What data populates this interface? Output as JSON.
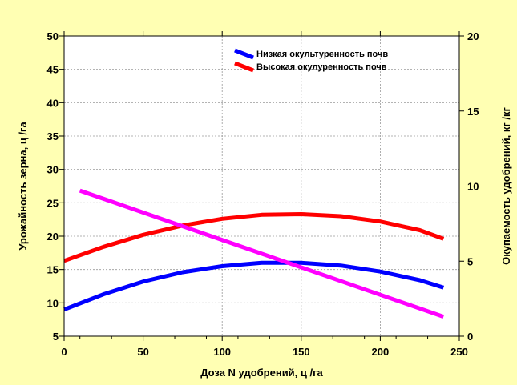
{
  "chart_data": {
    "type": "line",
    "xlabel": "Доза N удобрений, ц /га",
    "ylabel_left": "Урожайность зерна, ц /га",
    "ylabel_right": "Окупаемость удобрений, кг /кг",
    "xlim": [
      0,
      250
    ],
    "ylim_left": [
      5,
      50
    ],
    "ylim_right": [
      0,
      20
    ],
    "x_ticks": [
      0,
      50,
      100,
      150,
      200,
      250
    ],
    "y_left_ticks": [
      5,
      10,
      15,
      20,
      25,
      30,
      35,
      40,
      45,
      50
    ],
    "y_right_ticks": [
      0,
      5,
      10,
      15,
      20
    ],
    "grid": true,
    "legend_position": "top-right",
    "series": [
      {
        "name": "Низкая окультуренность почв",
        "color": "#0000FF",
        "axis": "left",
        "x": [
          0,
          25,
          50,
          75,
          100,
          125,
          150,
          175,
          200,
          225,
          240
        ],
        "y": [
          9.0,
          11.3,
          13.2,
          14.6,
          15.5,
          16.0,
          16.0,
          15.6,
          14.7,
          13.4,
          12.3
        ]
      },
      {
        "name": "Высокая окулуренность почв",
        "color": "#FF0000",
        "axis": "left",
        "x": [
          0,
          25,
          50,
          75,
          100,
          125,
          150,
          175,
          200,
          225,
          240
        ],
        "y": [
          16.3,
          18.4,
          20.2,
          21.6,
          22.6,
          23.2,
          23.3,
          23.0,
          22.2,
          20.9,
          19.6
        ]
      },
      {
        "name": "",
        "color": "#FF00FF",
        "axis": "right",
        "x": [
          10,
          240
        ],
        "y": [
          9.7,
          1.3
        ]
      }
    ]
  }
}
